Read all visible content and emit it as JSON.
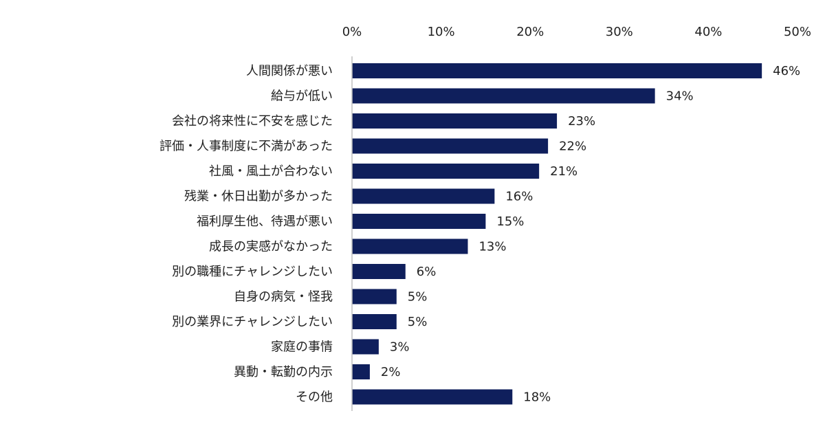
{
  "chart_data": {
    "type": "bar",
    "orientation": "horizontal",
    "title": "",
    "xlabel": "",
    "ylabel": "",
    "xlim": [
      0,
      50
    ],
    "x_ticks": [
      "0%",
      "10%",
      "20%",
      "30%",
      "40%",
      "50%"
    ],
    "x_tick_values": [
      0,
      10,
      20,
      30,
      40,
      50
    ],
    "x_axis_position": "top",
    "grid": false,
    "legend": "none",
    "categories": [
      "人間関係が悪い",
      "給与が低い",
      "会社の将来性に不安を感じた",
      "評価・人事制度に不満があった",
      "社風・風土が合わない",
      "残業・休日出勤が多かった",
      "福利厚生他、待遇が悪い",
      "成長の実感がなかった",
      "別の職種にチャレンジしたい",
      "自身の病気・怪我",
      "別の業界にチャレンジしたい",
      "家庭の事情",
      "異動・転勤の内示",
      "その他"
    ],
    "values": [
      46,
      34,
      23,
      22,
      21,
      16,
      15,
      13,
      6,
      5,
      5,
      3,
      2,
      18
    ],
    "data_labels": [
      "46%",
      "34%",
      "23%",
      "22%",
      "21%",
      "16%",
      "15%",
      "13%",
      "6%",
      "5%",
      "5%",
      "3%",
      "2%",
      "18%"
    ],
    "bar_color": "#0f1f5c",
    "axis_color": "#bfbfbf",
    "text_color": "#222222"
  }
}
